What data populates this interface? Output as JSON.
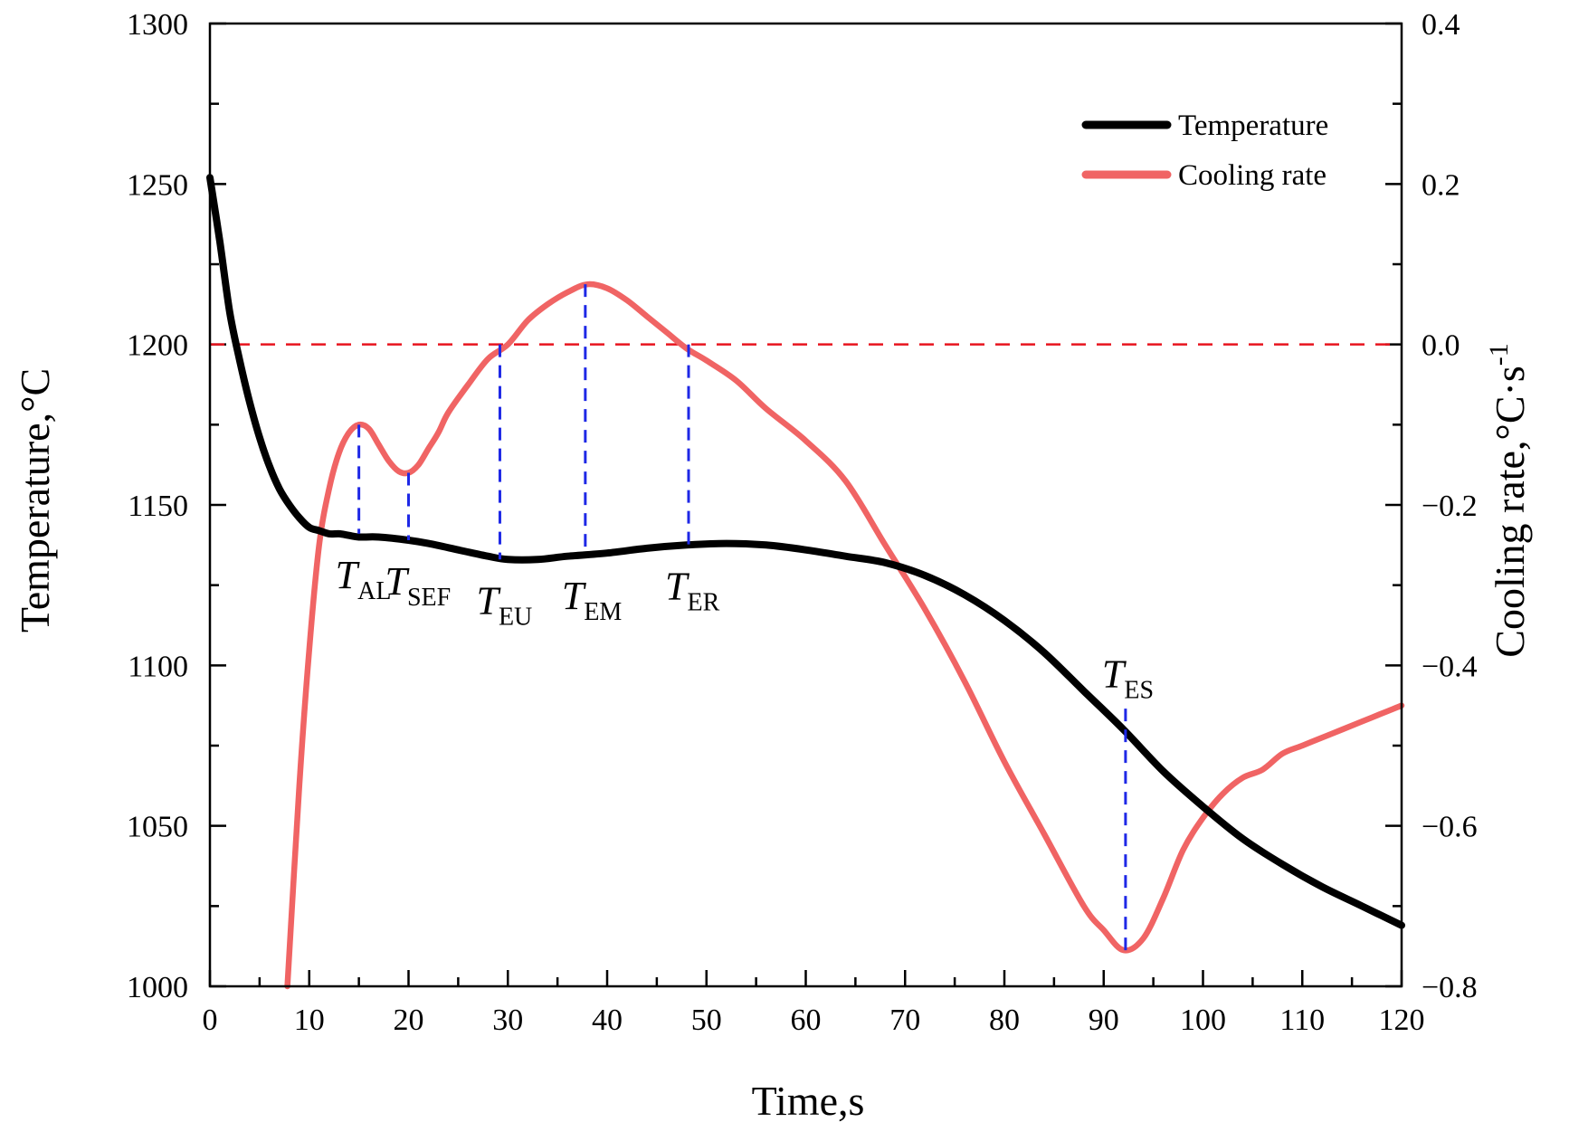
{
  "chart_data": {
    "type": "line",
    "xlabel": "Time,s",
    "ylabel": "Temperature,",
    "ylabel_unit": "°C",
    "y2label": "Cooling rate,",
    "y2label_unit": "°C·s",
    "y2label_exp": "-1",
    "xlim": [
      0,
      120
    ],
    "ylim": [
      1000,
      1300
    ],
    "y2lim": [
      -0.8,
      0.4
    ],
    "xticks": [
      0,
      10,
      20,
      30,
      40,
      50,
      60,
      70,
      80,
      90,
      100,
      110,
      120
    ],
    "xtick_labels": [
      "0",
      "10",
      "20",
      "30",
      "40",
      "50",
      "60",
      "70",
      "80",
      "90",
      "100",
      "110",
      "120"
    ],
    "yticks": [
      1000,
      1050,
      1100,
      1150,
      1200,
      1250,
      1300
    ],
    "ytick_labels": [
      "1000",
      "1050",
      "1100",
      "1150",
      "1200",
      "1250",
      "1300"
    ],
    "y2ticks": [
      -0.8,
      -0.6,
      -0.4,
      -0.2,
      0.0,
      0.2,
      0.4
    ],
    "y2tick_labels": [
      "−0.8",
      "−0.6",
      "−0.4",
      "−0.2",
      "0.0",
      "0.2",
      "0.4"
    ],
    "legend": {
      "position": "top-right",
      "entries": [
        {
          "name": "Temperature",
          "color": "#000000"
        },
        {
          "name": "Cooling rate",
          "color": "#f06464"
        }
      ]
    },
    "zero_line": {
      "axis": "y2",
      "value": 0.0,
      "color": "#e8141e"
    },
    "series": [
      {
        "name": "Temperature",
        "axis": "y",
        "color": "#000000",
        "x": [
          0,
          1,
          2,
          3,
          4,
          5,
          6,
          7,
          8,
          9,
          10,
          11,
          12,
          13,
          14,
          15,
          17,
          20,
          22,
          25,
          28,
          30,
          33,
          36,
          40,
          44,
          48,
          52,
          56,
          60,
          64,
          68,
          72,
          76,
          80,
          84,
          88,
          92,
          96,
          100,
          104,
          108,
          112,
          116,
          120
        ],
        "values": [
          1252,
          1232,
          1210,
          1195,
          1182,
          1171,
          1162,
          1155,
          1150,
          1146,
          1143,
          1142,
          1141,
          1141,
          1140.5,
          1140,
          1140,
          1139,
          1138,
          1136,
          1134,
          1133,
          1133,
          1134,
          1135,
          1136.5,
          1137.5,
          1138,
          1137.5,
          1136,
          1134,
          1132,
          1128,
          1122,
          1114,
          1104,
          1092,
          1080,
          1067,
          1056,
          1046,
          1038,
          1031,
          1025,
          1019
        ]
      },
      {
        "name": "Cooling rate",
        "axis": "y2",
        "color": "#f06464",
        "x": [
          7.8,
          9,
          10,
          11,
          12,
          13,
          14,
          15,
          16,
          17,
          18,
          19,
          20,
          21,
          22,
          23,
          24,
          26,
          28,
          30,
          32,
          34,
          36,
          38,
          40,
          42,
          44,
          46,
          48,
          50,
          53,
          56,
          60,
          64,
          68,
          72,
          76,
          80,
          84,
          88,
          90,
          92,
          94,
          96,
          98,
          100,
          102,
          104,
          106,
          108,
          110,
          112,
          114,
          116,
          118,
          120
        ],
        "values": [
          -0.8,
          -0.55,
          -0.38,
          -0.25,
          -0.18,
          -0.135,
          -0.11,
          -0.1,
          -0.105,
          -0.125,
          -0.145,
          -0.158,
          -0.16,
          -0.15,
          -0.13,
          -0.11,
          -0.085,
          -0.05,
          -0.018,
          0.0,
          0.03,
          0.05,
          0.065,
          0.075,
          0.07,
          0.055,
          0.035,
          0.015,
          -0.005,
          -0.02,
          -0.045,
          -0.08,
          -0.12,
          -0.17,
          -0.25,
          -0.33,
          -0.42,
          -0.52,
          -0.61,
          -0.7,
          -0.73,
          -0.755,
          -0.74,
          -0.69,
          -0.63,
          -0.59,
          -0.56,
          -0.54,
          -0.53,
          -0.51,
          -0.5,
          -0.49,
          -0.48,
          -0.47,
          -0.46,
          -0.45
        ]
      }
    ],
    "annotations": [
      {
        "main": "T",
        "sub": "AL",
        "x": 15,
        "y2_top": -0.1,
        "y_bottom": 1141
      },
      {
        "main": "T",
        "sub": "SEF",
        "x": 20,
        "y2_top": -0.16,
        "y_bottom": 1139
      },
      {
        "main": "T",
        "sub": "EU",
        "x": 29.2,
        "y2_top": 0.0,
        "y_bottom": 1133
      },
      {
        "main": "T",
        "sub": "EM",
        "x": 37.8,
        "y2_top": 0.075,
        "y_bottom": 1134.5
      },
      {
        "main": "T",
        "sub": "ER",
        "x": 48.2,
        "y2_top": 0.0,
        "y_bottom": 1137.5
      },
      {
        "main": "T",
        "sub": "ES",
        "x": 92.2,
        "y2_top": -0.755,
        "y_bottom": 1087,
        "placement": "above"
      }
    ]
  }
}
